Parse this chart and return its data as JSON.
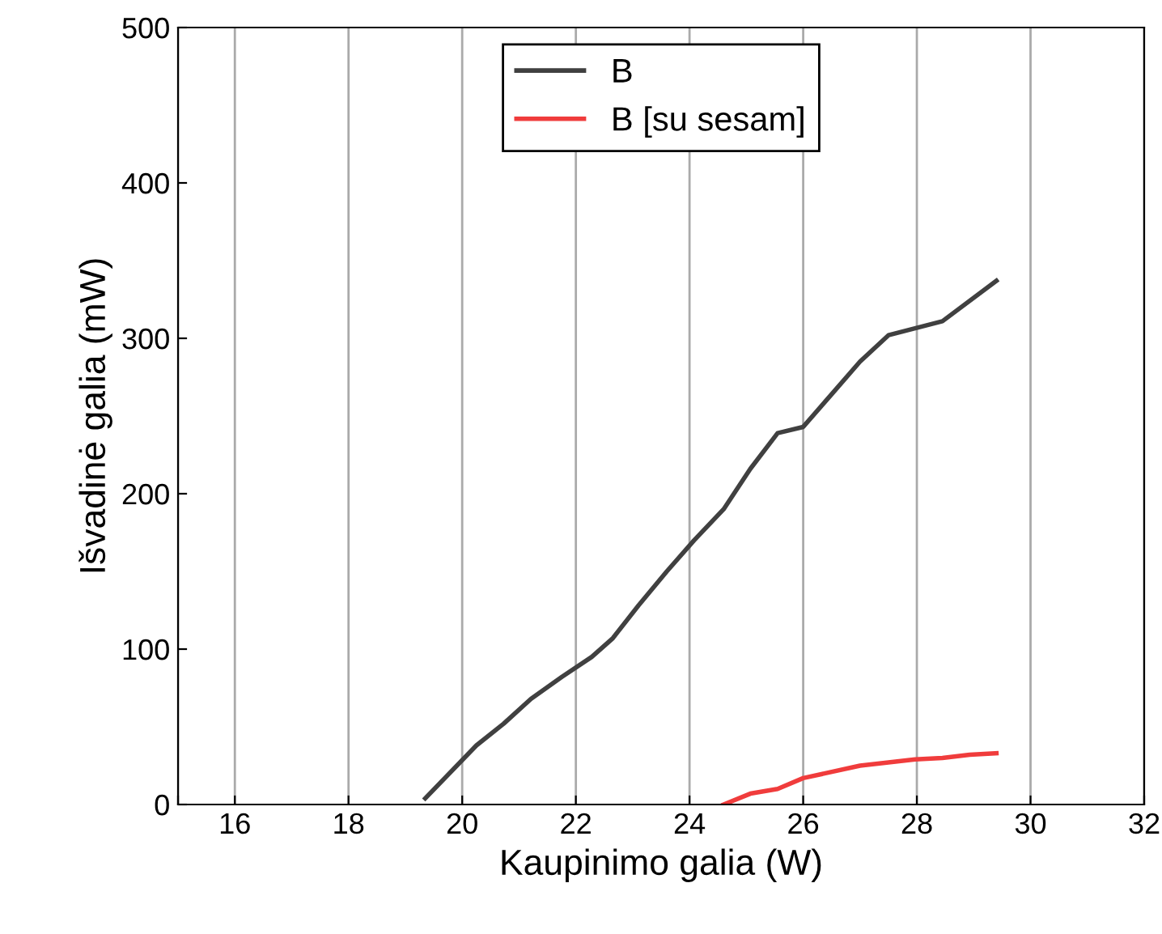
{
  "chart_data": {
    "type": "line",
    "xlabel": "Kaupinimo galia (W)",
    "ylabel": "Išvadinė galia (mW)",
    "xlim": [
      15,
      32
    ],
    "xticks": [
      {
        "value": 15,
        "label": null
      },
      16,
      18,
      20,
      22,
      24,
      26,
      28,
      30,
      32
    ],
    "ylim": [
      0,
      500
    ],
    "yticks": [
      0,
      100,
      200,
      300,
      400,
      500
    ],
    "grid": "x",
    "legend": "top",
    "series": [
      {
        "name": "B",
        "color": "#404040",
        "x": [
          19.35,
          20.25,
          20.73,
          21.21,
          21.75,
          22.28,
          22.65,
          23.1,
          23.6,
          24.08,
          24.6,
          25.07,
          25.55,
          26.0,
          26.5,
          27.0,
          27.5,
          28.45,
          29.4
        ],
        "values": [
          4,
          38,
          52,
          68,
          82,
          95,
          107,
          128,
          150,
          170,
          190,
          216,
          239,
          243,
          264,
          285,
          302,
          311,
          337
        ]
      },
      {
        "name": "B [su sesam]",
        "color": "#f03c3c",
        "x": [
          24.6,
          25.07,
          25.55,
          26.0,
          27.0,
          27.97,
          28.45,
          28.93,
          29.4
        ],
        "values": [
          0,
          7,
          10,
          17,
          25,
          29,
          30,
          32,
          33
        ]
      }
    ]
  }
}
